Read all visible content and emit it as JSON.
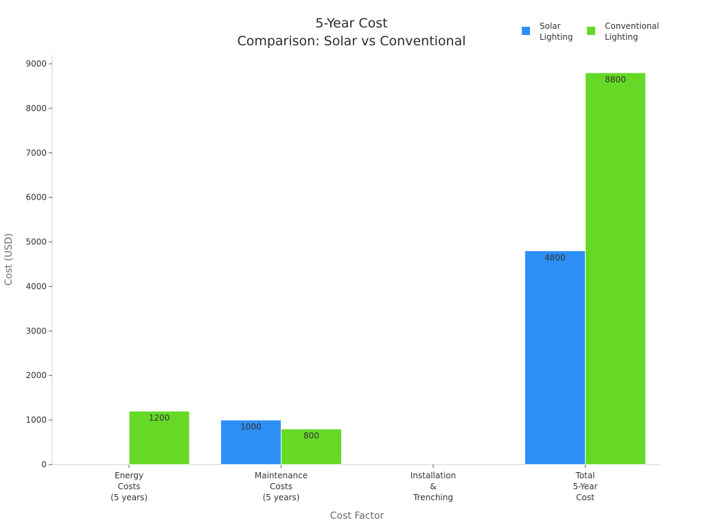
{
  "chart_data": {
    "type": "bar",
    "title_lines": [
      "5-Year Cost",
      "Comparison: Solar vs Conventional"
    ],
    "xlabel": "Cost Factor",
    "ylabel": "Cost (USD)",
    "categories": [
      [
        "Energy",
        "Costs",
        "(5 years)"
      ],
      [
        "Maintenance",
        "Costs",
        "(5 years)"
      ],
      [
        "Installation",
        "&",
        "Trenching"
      ],
      [
        "Total",
        "5-Year",
        "Cost"
      ]
    ],
    "series": [
      {
        "name": [
          "Solar",
          "Lighting"
        ],
        "color": "#2d8ff5",
        "values": [
          0,
          1000,
          0,
          4800
        ]
      },
      {
        "name": [
          "Conventional",
          "Lighting"
        ],
        "color": "#66d926",
        "values": [
          1200,
          800,
          0,
          8800
        ]
      }
    ],
    "ylim": [
      0,
      9200
    ],
    "yticks": [
      0,
      1000,
      2000,
      3000,
      4000,
      5000,
      6000,
      7000,
      8000,
      9000
    ],
    "grid": false,
    "legend_position": "top-right"
  }
}
